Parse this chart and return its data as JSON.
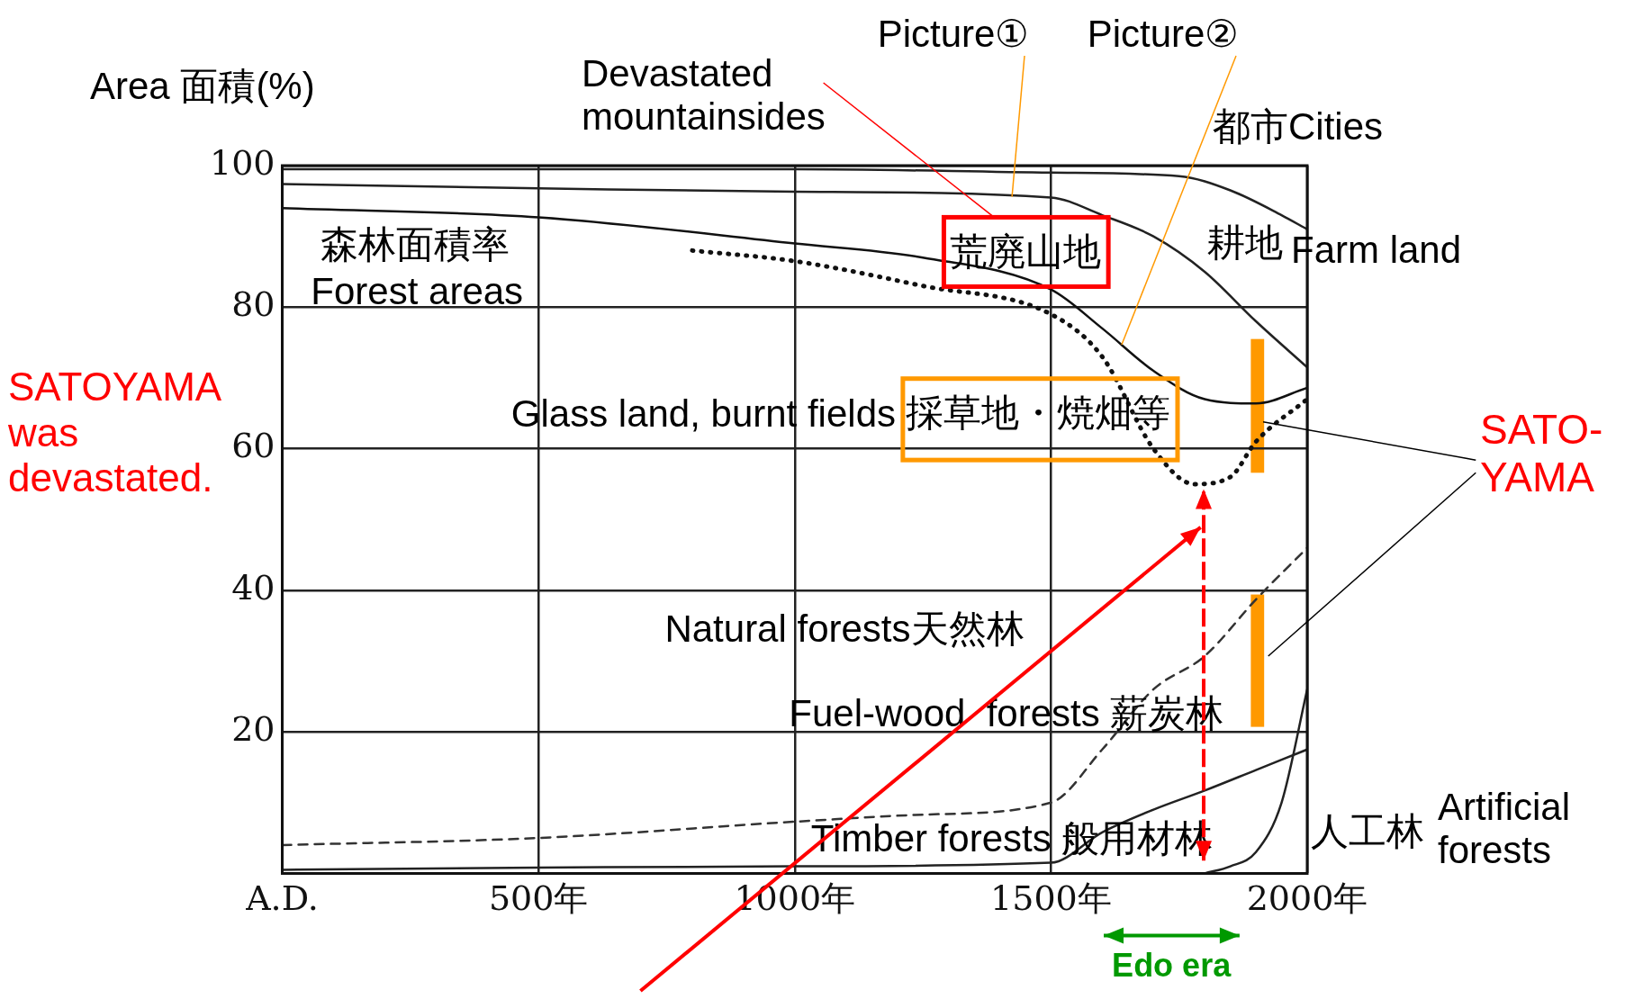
{
  "chart_data": {
    "type": "line",
    "ylabel": "Area 面積(%)",
    "xlim": [
      0,
      2000
    ],
    "xticks": [
      {
        "value": 0,
        "label": "A.D."
      },
      {
        "value": 500,
        "label": "500年"
      },
      {
        "value": 1000,
        "label": "1000年"
      },
      {
        "value": 1500,
        "label": "1500年"
      },
      {
        "value": 2000,
        "label": "2000年"
      }
    ],
    "ylim": [
      0,
      100
    ],
    "yticks": [
      20,
      40,
      60,
      80,
      100
    ],
    "grid": true,
    "legend": false,
    "marker": "none",
    "series": [
      {
        "color": "#222222",
        "line_style": "solid",
        "x": [
          0,
          1000,
          1500,
          1750,
          1850,
          1950,
          2000
        ],
        "values": [
          99.5,
          99.5,
          99,
          98.5,
          96.5,
          93,
          91
        ]
      },
      {
        "color": "#222222",
        "line_style": "solid",
        "x": [
          0,
          500,
          1000,
          1500,
          1600,
          1700,
          1800,
          1900,
          2000
        ],
        "values": [
          97.4,
          96.8,
          96.3,
          95.5,
          93,
          90,
          85,
          78,
          71.5
        ]
      },
      {
        "color": "#111111",
        "line_style": "solid",
        "x": [
          0,
          500,
          1000,
          1250,
          1500,
          1600,
          1700,
          1800,
          1900,
          2000
        ],
        "values": [
          94,
          92.7,
          89,
          87,
          82.5,
          77,
          71,
          67,
          66.4,
          68.6
        ]
      },
      {
        "color": "#111111",
        "line_style": "dotted",
        "x": [
          800,
          1000,
          1250,
          1500,
          1600,
          1700,
          1780,
          1850,
          1900,
          2000
        ],
        "values": [
          88,
          86.5,
          83,
          79,
          73,
          60,
          55,
          56,
          61,
          67
        ]
      },
      {
        "color": "#333333",
        "line_style": "dashed",
        "x": [
          0,
          500,
          1000,
          1250,
          1500,
          1600,
          1700,
          1800,
          1900,
          2000
        ],
        "values": [
          4,
          5,
          7.3,
          8.3,
          10,
          17.5,
          26,
          30.7,
          38.7,
          46
        ]
      },
      {
        "color": "#222222",
        "line_style": "solid",
        "x": [
          0,
          500,
          1000,
          1500,
          1600,
          1700,
          1800,
          1900,
          2000
        ],
        "values": [
          0.5,
          0.8,
          1,
          1.5,
          5.8,
          9,
          11.7,
          14.6,
          17.5
        ]
      },
      {
        "color": "#222222",
        "line_style": "solid",
        "x": [
          1800,
          1850,
          1900,
          1950,
          2000
        ],
        "values": [
          0,
          1,
          3,
          10,
          26
        ]
      }
    ],
    "annotations": [
      {
        "text": "Picture①",
        "x": 1424,
        "y": 95.6
      },
      {
        "text": "Picture②",
        "x": 1638,
        "y": 74.7
      },
      "Devastated mountainsides",
      "都市Cities",
      "Farm land",
      "Glass land, burnt fields",
      "SATOYAMA was devastated.",
      "SATO-YAMA",
      "人工林",
      "Artificial forests",
      "荒廃山地",
      "採草地・焼畑等",
      "森林面積率",
      "Forest areas",
      "耕地",
      "Natural forests天然林",
      "Fuel-wood  forests 薪炭林",
      "Timber forests 般用材林",
      "Edo era"
    ]
  }
}
